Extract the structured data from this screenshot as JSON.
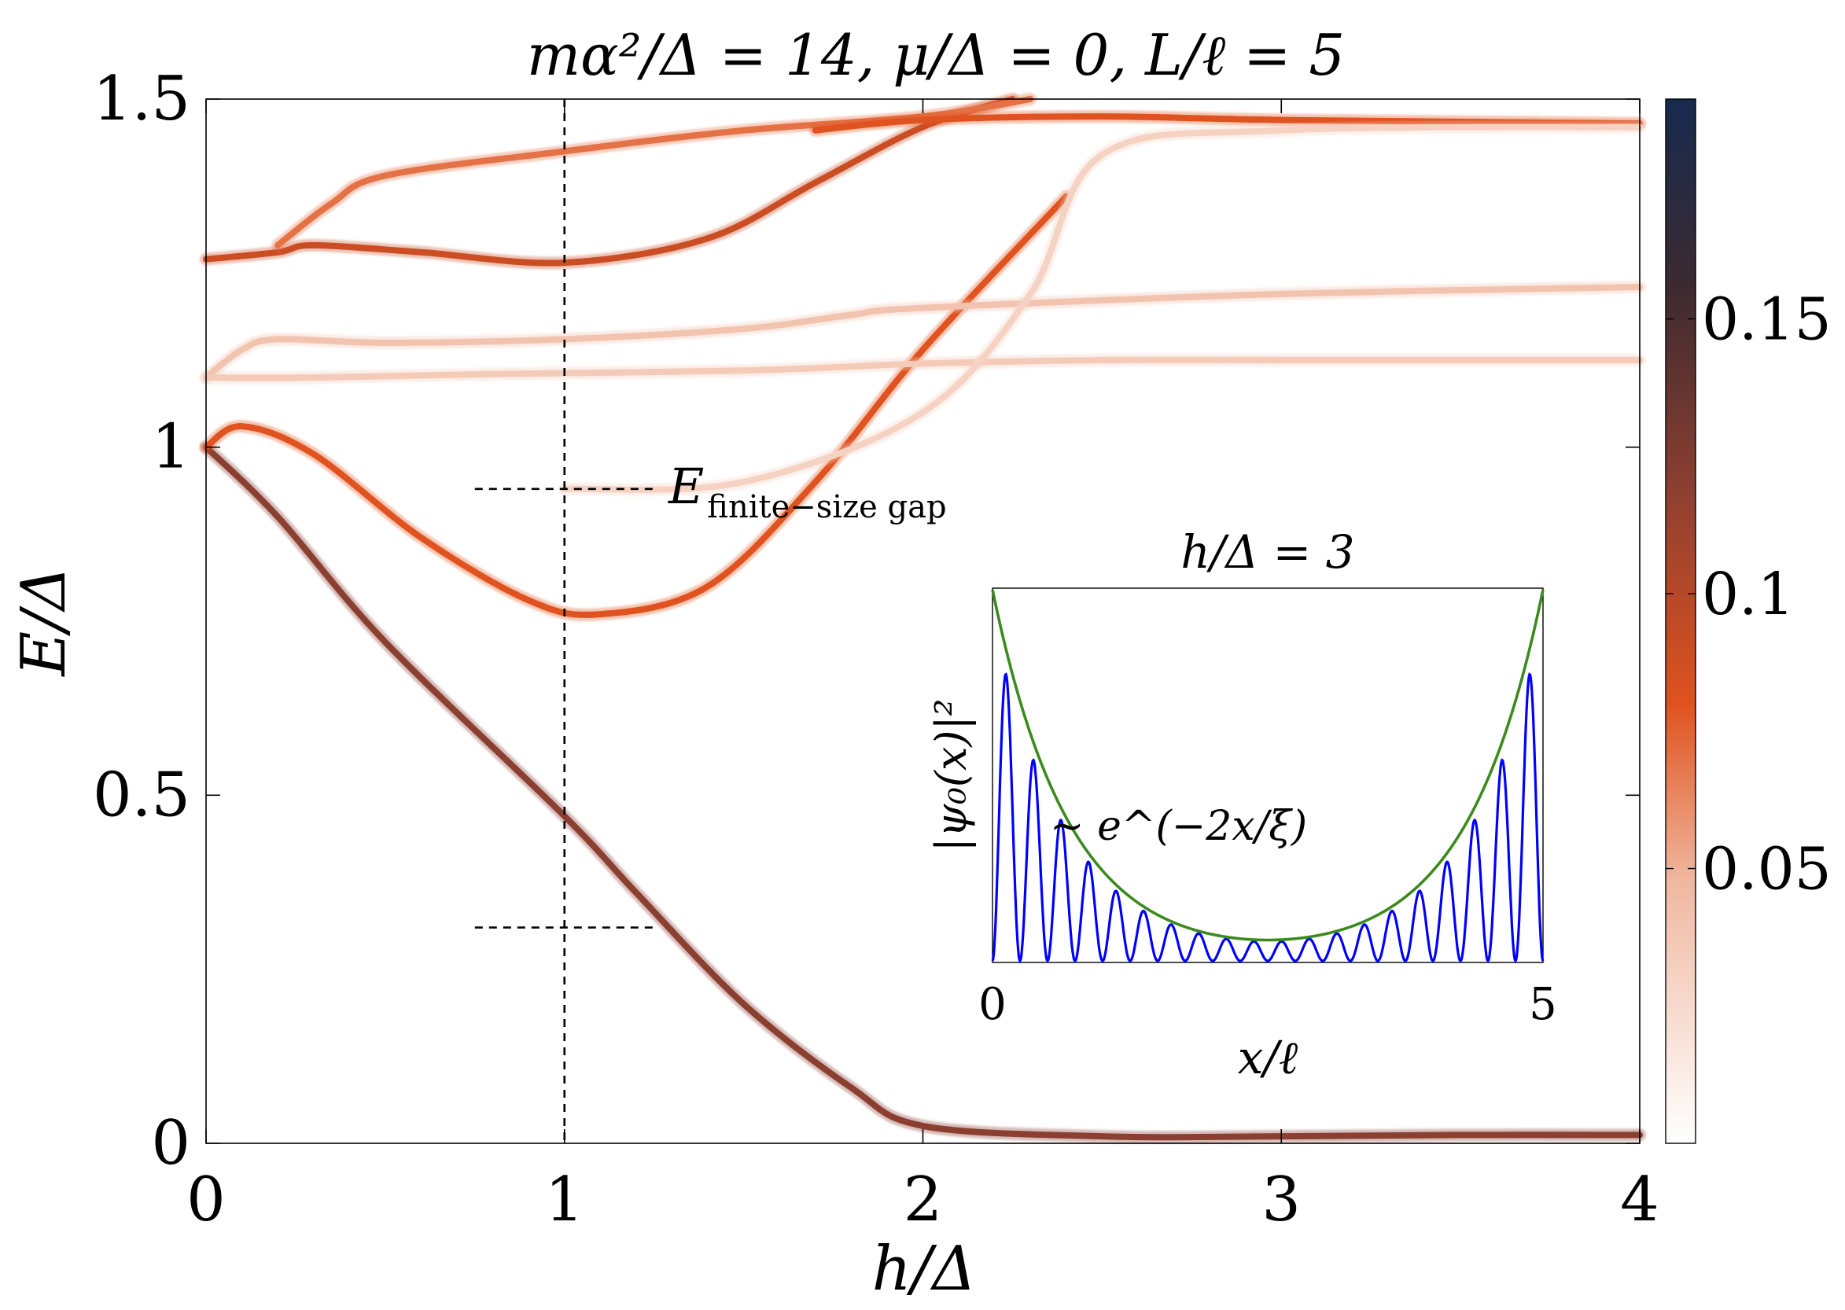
{
  "chart_data": [
    {
      "type": "heatmap",
      "title": "mα²/Δ = 14, μ/Δ = 0, L/ℓ = 5",
      "xlabel": "h/Δ",
      "ylabel": "E/Δ",
      "xlim": [
        0,
        4
      ],
      "ylim": [
        0,
        1.5
      ],
      "xticks": [
        "0",
        "1",
        "2",
        "3",
        "4"
      ],
      "xtick_values": [
        0,
        1,
        2,
        3,
        4
      ],
      "yticks": [
        "0",
        "0.5",
        "1",
        "1.5"
      ],
      "ytick_values": [
        0,
        0.5,
        1,
        1.5
      ],
      "colorbar": {
        "range": [
          0,
          0.19
        ],
        "ticks": [
          "0.05",
          "0.1",
          "0.15"
        ],
        "tick_values": [
          0.05,
          0.1,
          0.15
        ],
        "colors": [
          "#ffffff",
          "#e0521f",
          "#1a2a4a"
        ]
      },
      "grid": false,
      "annotations": {
        "gap_label_main": "E",
        "gap_label_sub": "finite−size gap",
        "vertical_marker_x": 1,
        "gap_marker_upper_y": 0.94,
        "gap_marker_lower_y": 0.31,
        "gap_marker_x_range": [
          0.75,
          1.25
        ]
      },
      "series": [
        {
          "x": [
            0,
            0.2,
            0.5,
            1,
            1.2,
            1.5,
            1.8,
            2.0,
            2.5,
            3,
            3.5,
            4
          ],
          "y": [
            1.0,
            0.9,
            0.72,
            0.47,
            0.36,
            0.2,
            0.08,
            0.025,
            0.01,
            0.01,
            0.012,
            0.012
          ],
          "intensity": 0.12
        },
        {
          "x": [
            0,
            0.1,
            0.3,
            0.6,
            0.9,
            1.1,
            1.4,
            1.7,
            2.0,
            2.4
          ],
          "y": [
            1.0,
            1.03,
            0.99,
            0.87,
            0.78,
            0.76,
            0.8,
            0.95,
            1.14,
            1.36
          ],
          "intensity": 0.08
        },
        {
          "x": [
            0,
            0.1,
            0.2,
            0.5,
            1,
            1.5,
            1.8,
            2.0,
            3,
            4
          ],
          "y": [
            1.1,
            1.14,
            1.155,
            1.15,
            1.155,
            1.17,
            1.19,
            1.2,
            1.22,
            1.23
          ],
          "intensity": 0.04
        },
        {
          "x": [
            0,
            0.3,
            0.8,
            1.5,
            2.0,
            2.5,
            3,
            4
          ],
          "y": [
            1.1,
            1.1,
            1.105,
            1.11,
            1.12,
            1.125,
            1.125,
            1.125
          ],
          "intensity": 0.035
        },
        {
          "x": [
            0,
            0.2,
            0.3,
            0.6,
            1,
            1.4,
            1.7,
            2.0,
            2.25
          ],
          "y": [
            1.27,
            1.28,
            1.29,
            1.28,
            1.265,
            1.3,
            1.38,
            1.46,
            1.5
          ],
          "intensity": 0.09
        },
        {
          "x": [
            0.2,
            0.35,
            0.5,
            1,
            1.5,
            2.0,
            2.3
          ],
          "y": [
            1.29,
            1.35,
            1.39,
            1.425,
            1.455,
            1.475,
            1.5
          ],
          "intensity": 0.07
        },
        {
          "x": [
            1.7,
            2.0,
            2.5,
            3,
            4
          ],
          "y": [
            1.455,
            1.47,
            1.475,
            1.47,
            1.465
          ],
          "intensity": 0.08
        },
        {
          "x": [
            1.0,
            1.5,
            2.0,
            2.3,
            2.5,
            3,
            4
          ],
          "y": [
            0.94,
            0.95,
            1.05,
            1.22,
            1.42,
            1.455,
            1.46
          ],
          "intensity": 0.03
        }
      ]
    },
    {
      "type": "line",
      "title": "h/Δ = 3",
      "xlabel": "x/ℓ",
      "ylabel": "|ψ₀(x)|²",
      "xlim": [
        0,
        5
      ],
      "xticks": [
        "0",
        "5"
      ],
      "xtick_values": [
        0,
        5
      ],
      "annotation": "∼ e^(−2x/ξ)",
      "series": [
        {
          "color": "#0000ff",
          "function": "|psi0|^2 = envelope * sin^2(k x), k*L/pi = 20 half-periods"
        },
        {
          "color": "#3c8a1e",
          "function": "envelope = exp(-2x/ξ) + exp(-2(L-x)/ξ), ξ ≈ 1.4"
        }
      ]
    }
  ]
}
